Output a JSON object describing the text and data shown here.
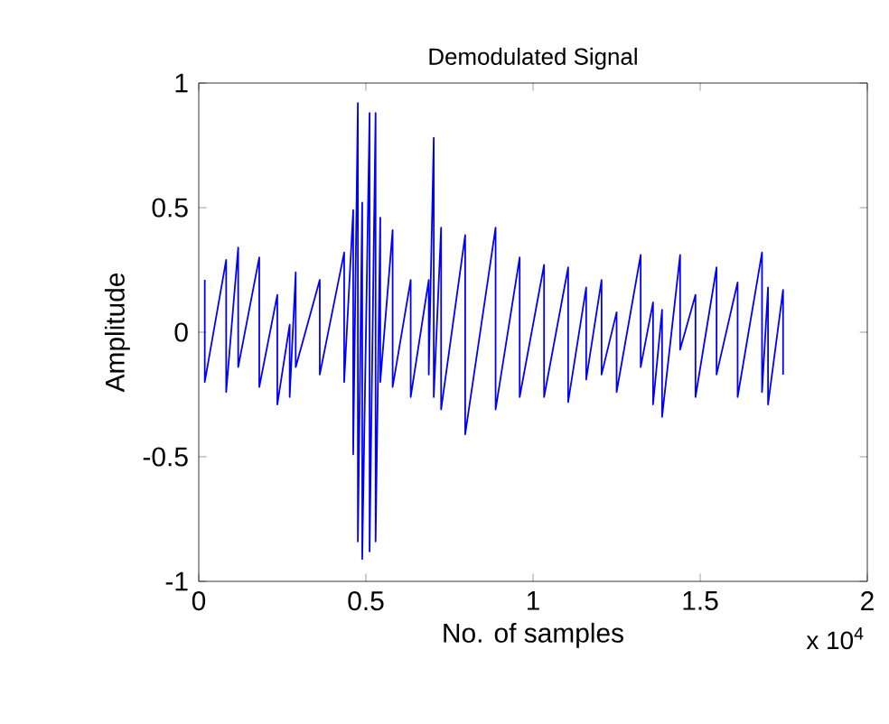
{
  "chart_data": {
    "type": "line",
    "title": "Demodulated Signal",
    "xlabel": "No. of samples",
    "ylabel": "Amplitude",
    "annotations": [
      "x 10$^{4}$"
    ],
    "xlim": [
      0,
      2
    ],
    "xticks": [
      0,
      0.5,
      1,
      1.5,
      2
    ],
    "ylim": [
      -1,
      1
    ],
    "yticks": [
      -1,
      -0.5,
      0,
      0.5,
      1
    ],
    "series": [
      {
        "color": "#0000ff",
        "x": [
          0.018,
          0.018,
          0.082,
          0.082,
          0.118,
          0.118,
          0.181,
          0.181,
          0.235,
          0.235,
          0.272,
          0.272,
          0.29,
          0.29,
          0.362,
          0.362,
          0.435,
          0.435,
          0.462,
          0.462,
          0.476,
          0.476,
          0.489,
          0.489,
          0.511,
          0.511,
          0.529,
          0.529,
          0.543,
          0.543,
          0.58,
          0.58,
          0.634,
          0.634,
          0.688,
          0.688,
          0.703,
          0.703,
          0.725,
          0.725,
          0.797,
          0.797,
          0.888,
          0.888,
          0.96,
          0.96,
          1.033,
          1.033,
          1.105,
          1.105,
          1.159,
          1.159,
          1.205,
          1.205,
          1.25,
          1.25,
          1.322,
          1.322,
          1.359,
          1.359,
          1.386,
          1.386,
          1.44,
          1.44,
          1.486,
          1.486,
          1.549,
          1.549,
          1.612,
          1.612,
          1.685,
          1.685,
          1.703,
          1.703,
          1.748,
          1.748
        ],
        "values": [
          0.21,
          -0.2,
          0.29,
          -0.24,
          0.34,
          -0.14,
          0.3,
          -0.22,
          0.15,
          -0.29,
          0.03,
          -0.26,
          0.24,
          -0.14,
          0.21,
          -0.17,
          0.32,
          -0.2,
          0.49,
          -0.49,
          0.92,
          -0.84,
          0.52,
          -0.91,
          0.88,
          -0.88,
          0.88,
          -0.84,
          0.46,
          -0.2,
          0.41,
          -0.22,
          0.21,
          -0.26,
          0.21,
          -0.17,
          0.78,
          -0.26,
          0.42,
          -0.31,
          0.39,
          -0.41,
          0.42,
          -0.31,
          0.3,
          -0.26,
          0.27,
          -0.26,
          0.26,
          -0.28,
          0.18,
          -0.19,
          0.21,
          -0.17,
          0.08,
          -0.24,
          0.31,
          -0.14,
          0.12,
          -0.29,
          0.09,
          -0.34,
          0.31,
          -0.07,
          0.15,
          -0.26,
          0.26,
          -0.17,
          0.2,
          -0.26,
          0.32,
          -0.24,
          0.18,
          -0.29,
          0.17,
          -0.17
        ]
      }
    ]
  }
}
